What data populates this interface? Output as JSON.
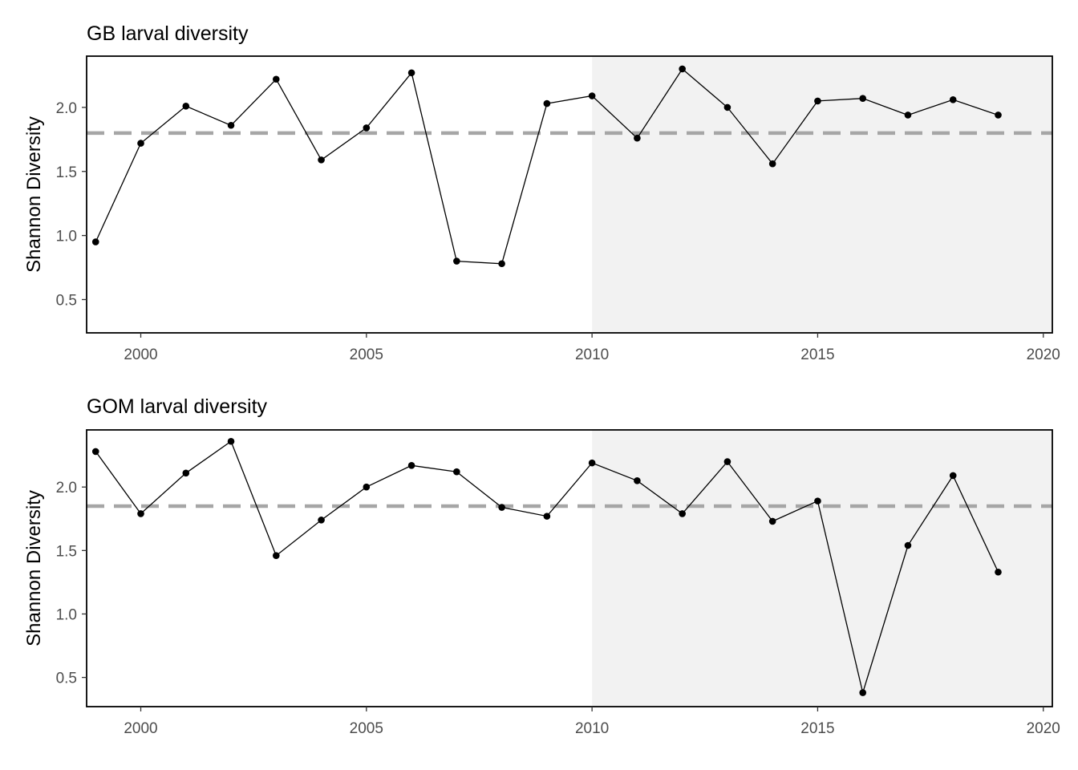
{
  "colors": {
    "line": "#000000",
    "point": "#000000",
    "mean_line": "#a6a6a6",
    "shade": "#f2f2f2",
    "tick_text": "#4d4d4d",
    "frame": "#000000"
  },
  "chart_data": [
    {
      "type": "line",
      "title": "GB larval diversity",
      "xlabel": "",
      "ylabel": "Shannon Diversity",
      "xlim": [
        1998.8,
        2020.2
      ],
      "ylim": [
        0.24,
        2.4
      ],
      "x_ticks": [
        2000,
        2005,
        2010,
        2015,
        2020
      ],
      "y_ticks": [
        0.5,
        1.0,
        1.5,
        2.0
      ],
      "x_tick_labels": [
        "2000",
        "2005",
        "2010",
        "2015",
        "2020"
      ],
      "y_tick_labels": [
        "0.5",
        "1.0",
        "1.5",
        "2.0"
      ],
      "shaded_region": [
        2010,
        2020.2
      ],
      "mean_line": 1.8,
      "grid": false,
      "series": [
        {
          "x": [
            1999,
            2000,
            2001,
            2002,
            2003,
            2004,
            2005,
            2006,
            2007,
            2008,
            2009,
            2010,
            2011,
            2012,
            2013,
            2014,
            2015,
            2016,
            2017,
            2018,
            2019
          ],
          "values": [
            0.95,
            1.72,
            2.01,
            1.86,
            2.22,
            1.59,
            1.84,
            2.27,
            0.8,
            0.78,
            2.03,
            2.09,
            1.76,
            2.3,
            2.0,
            1.56,
            2.05,
            2.07,
            1.94,
            2.06,
            1.94
          ]
        }
      ]
    },
    {
      "type": "line",
      "title": "GOM larval diversity",
      "xlabel": "",
      "ylabel": "Shannon Diversity",
      "xlim": [
        1998.8,
        2020.2
      ],
      "ylim": [
        0.27,
        2.45
      ],
      "x_ticks": [
        2000,
        2005,
        2010,
        2015,
        2020
      ],
      "y_ticks": [
        0.5,
        1.0,
        1.5,
        2.0
      ],
      "x_tick_labels": [
        "2000",
        "2005",
        "2010",
        "2015",
        "2020"
      ],
      "y_tick_labels": [
        "0.5",
        "1.0",
        "1.5",
        "2.0"
      ],
      "shaded_region": [
        2010,
        2020.2
      ],
      "mean_line": 1.85,
      "grid": false,
      "series": [
        {
          "x": [
            1999,
            2000,
            2001,
            2002,
            2003,
            2004,
            2005,
            2006,
            2007,
            2008,
            2009,
            2010,
            2011,
            2012,
            2013,
            2014,
            2015,
            2016,
            2017,
            2018,
            2019
          ],
          "values": [
            2.28,
            1.79,
            2.11,
            2.36,
            1.46,
            1.74,
            2.0,
            2.17,
            2.12,
            1.84,
            1.77,
            2.19,
            2.05,
            1.79,
            2.2,
            1.73,
            1.89,
            0.38,
            1.54,
            2.09,
            1.33
          ]
        }
      ]
    }
  ]
}
